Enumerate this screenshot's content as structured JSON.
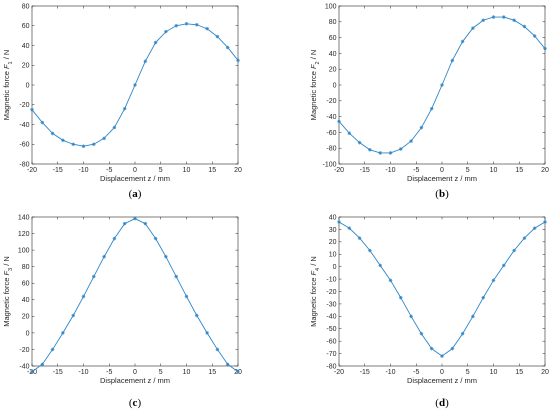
{
  "figure": {
    "panels": [
      {
        "label_open": "(",
        "label_letter": "a",
        "label_close": ")"
      },
      {
        "label_open": "(",
        "label_letter": "b",
        "label_close": ")"
      },
      {
        "label_open": "(",
        "label_letter": "c",
        "label_close": ")"
      },
      {
        "label_open": "(",
        "label_letter": "d",
        "label_close": ")"
      }
    ]
  },
  "colors": {
    "series": "#2e86c8",
    "axis": "#262626"
  },
  "chart_data": [
    {
      "type": "line",
      "title": "",
      "xlabel": "Displacement z / mm",
      "ylabel": "Magnetic force F1 / N",
      "ylabel_parts": {
        "prefix": "Magnetic force ",
        "symbol": "F",
        "sub": "1",
        "suffix": " / N"
      },
      "xlim": [
        -20,
        20
      ],
      "ylim": [
        -80,
        80
      ],
      "xticks": [
        -20,
        -15,
        -10,
        -5,
        0,
        5,
        10,
        15,
        20
      ],
      "yticks": [
        -80,
        -60,
        -40,
        -20,
        0,
        20,
        40,
        60,
        80
      ],
      "grid": false,
      "legend": "none",
      "series": [
        {
          "marker": "asterisk",
          "x": [
            -20,
            -18,
            -16,
            -14,
            -12,
            -10,
            -8,
            -6,
            -4,
            -2,
            0,
            2,
            4,
            6,
            8,
            10,
            12,
            14,
            16,
            18,
            20
          ],
          "y": [
            -25,
            -38,
            -49,
            -56,
            -60,
            -62,
            -60,
            -54,
            -43,
            -24,
            0,
            24,
            43,
            54,
            60,
            62,
            61,
            57,
            49,
            38,
            25
          ]
        }
      ]
    },
    {
      "type": "line",
      "title": "",
      "xlabel": "Displacement z / mm",
      "ylabel": "Magnetic force F2 / N",
      "ylabel_parts": {
        "prefix": "Magnetic force ",
        "symbol": "F",
        "sub": "2",
        "suffix": " / N"
      },
      "xlim": [
        -20,
        20
      ],
      "ylim": [
        -100,
        100
      ],
      "xticks": [
        -20,
        -15,
        -10,
        -5,
        0,
        5,
        10,
        15,
        20
      ],
      "yticks": [
        -100,
        -80,
        -60,
        -40,
        -20,
        0,
        20,
        40,
        60,
        80,
        100
      ],
      "grid": false,
      "legend": "none",
      "series": [
        {
          "marker": "asterisk",
          "x": [
            -20,
            -18,
            -16,
            -14,
            -12,
            -10,
            -8,
            -6,
            -4,
            -2,
            0,
            2,
            4,
            6,
            8,
            10,
            12,
            14,
            16,
            18,
            20
          ],
          "y": [
            -46,
            -61,
            -73,
            -82,
            -86,
            -86,
            -81,
            -71,
            -54,
            -30,
            0,
            31,
            55,
            72,
            82,
            86,
            86,
            82,
            74,
            62,
            46
          ]
        }
      ]
    },
    {
      "type": "line",
      "title": "",
      "xlabel": "Displacement z / mm",
      "ylabel": "Magnetic force F3 / N",
      "ylabel_parts": {
        "prefix": "Magnetic force ",
        "symbol": "F",
        "sub": "3",
        "suffix": " / N"
      },
      "xlim": [
        -20,
        20
      ],
      "ylim": [
        -40,
        140
      ],
      "xticks": [
        -20,
        -15,
        -10,
        -5,
        0,
        5,
        10,
        15,
        20
      ],
      "yticks": [
        -40,
        -20,
        0,
        20,
        40,
        60,
        80,
        100,
        120,
        140
      ],
      "grid": false,
      "legend": "none",
      "series": [
        {
          "marker": "asterisk",
          "x": [
            -20,
            -18,
            -16,
            -14,
            -12,
            -10,
            -8,
            -6,
            -4,
            -2,
            0,
            2,
            4,
            6,
            8,
            10,
            12,
            14,
            16,
            18,
            20
          ],
          "y": [
            -47,
            -38,
            -20,
            0,
            21,
            44,
            68,
            92,
            114,
            132,
            138,
            132,
            114,
            92,
            68,
            44,
            21,
            0,
            -20,
            -38,
            -47
          ]
        }
      ]
    },
    {
      "type": "line",
      "title": "",
      "xlabel": "Displacement z / mm",
      "ylabel": "Magnetic force F4 / N",
      "ylabel_parts": {
        "prefix": "Magnetic force ",
        "symbol": "F",
        "sub": "4",
        "suffix": " / N"
      },
      "xlim": [
        -20,
        20
      ],
      "ylim": [
        -80,
        40
      ],
      "xticks": [
        -20,
        -15,
        -10,
        -5,
        0,
        5,
        10,
        15,
        20
      ],
      "yticks": [
        -80,
        -70,
        -60,
        -50,
        -40,
        -30,
        -20,
        -10,
        0,
        10,
        20,
        30,
        40
      ],
      "grid": false,
      "legend": "none",
      "series": [
        {
          "marker": "asterisk",
          "x": [
            -20,
            -18,
            -16,
            -14,
            -12,
            -10,
            -8,
            -6,
            -4,
            -2,
            0,
            2,
            4,
            6,
            8,
            10,
            12,
            14,
            16,
            18,
            20
          ],
          "y": [
            36,
            31,
            23,
            13,
            1,
            -11,
            -25,
            -40,
            -54,
            -66,
            -72,
            -66,
            -54,
            -40,
            -25,
            -11,
            1,
            13,
            23,
            31,
            36
          ]
        }
      ]
    }
  ]
}
